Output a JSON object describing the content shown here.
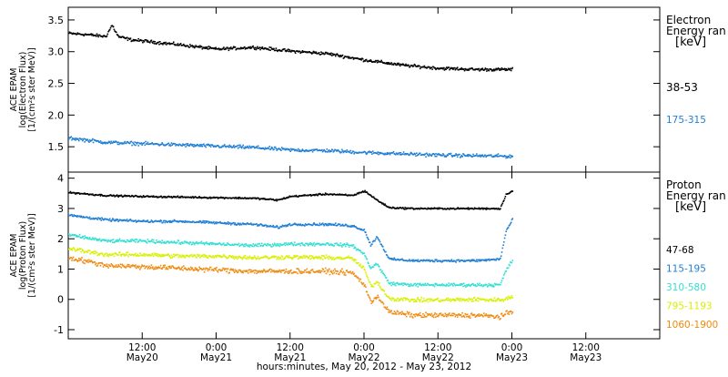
{
  "colors": {
    "black": "#000000",
    "blue": "#1f7fd4",
    "cyan": "#33e0d2",
    "yellow": "#d8f000",
    "orange": "#f08a10"
  },
  "x_axis": {
    "label": "hours:minutes, May 20, 2012 - May 23, 2012",
    "range_hours": [
      0,
      96
    ],
    "ticks": [
      {
        "hour": 12,
        "time": "12:00",
        "day": "May20"
      },
      {
        "hour": 24,
        "time": "0:00",
        "day": "May21"
      },
      {
        "hour": 36,
        "time": "12:00",
        "day": "May21"
      },
      {
        "hour": 48,
        "time": "0:00",
        "day": "May22"
      },
      {
        "hour": 60,
        "time": "12:00",
        "day": "May22"
      },
      {
        "hour": 72,
        "time": "0:00",
        "day": "May23"
      },
      {
        "hour": 84,
        "time": "12:00",
        "day": "May23"
      }
    ]
  },
  "chart_data": [
    {
      "type": "scatter",
      "ylabel_lines": [
        "ACE EPAM",
        "log(Electron Flux)",
        "[1/(cm²s ster MeV)]"
      ],
      "ylim": [
        1.1,
        3.7
      ],
      "yticks": [
        {
          "v": 1.5,
          "label": "1.5"
        },
        {
          "v": 2.0,
          "label": "2.0"
        },
        {
          "v": 2.5,
          "label": "2.5"
        },
        {
          "v": 3.0,
          "label": "3.0"
        },
        {
          "v": 3.5,
          "label": "3.5"
        }
      ],
      "legend_title_lines": [
        "Electron",
        "Energy ran",
        "[keV]"
      ],
      "x_end_hour": 72,
      "series": [
        {
          "name": "38-53",
          "color": "#000000",
          "spread": 0.035,
          "x": [
            0,
            3,
            6,
            7,
            8,
            10,
            12,
            18,
            24,
            30,
            36,
            42,
            48,
            54,
            60,
            66,
            72
          ],
          "y": [
            3.3,
            3.28,
            3.25,
            3.43,
            3.25,
            3.2,
            3.18,
            3.12,
            3.05,
            3.08,
            3.02,
            2.98,
            2.88,
            2.8,
            2.75,
            2.73,
            2.73
          ]
        },
        {
          "name": "175-315",
          "color": "#1f7fd4",
          "spread": 0.04,
          "x": [
            0,
            6,
            12,
            18,
            24,
            30,
            36,
            42,
            48,
            54,
            60,
            66,
            72
          ],
          "y": [
            1.65,
            1.58,
            1.56,
            1.54,
            1.52,
            1.5,
            1.46,
            1.45,
            1.42,
            1.4,
            1.38,
            1.37,
            1.36
          ]
        }
      ]
    },
    {
      "type": "scatter",
      "ylabel_lines": [
        "ACE EPAM",
        "log(Proton Flux)",
        "[1/(cm²s ster MeV)]"
      ],
      "ylim": [
        -1.3,
        4.2
      ],
      "yticks": [
        {
          "v": -1,
          "label": "-1"
        },
        {
          "v": 0,
          "label": "0"
        },
        {
          "v": 1,
          "label": "1"
        },
        {
          "v": 2,
          "label": "2"
        },
        {
          "v": 3,
          "label": "3"
        },
        {
          "v": 4,
          "label": "4"
        }
      ],
      "legend_title_lines": [
        "Proton",
        "Energy ran",
        "[keV]"
      ],
      "x_end_hour": 72,
      "series": [
        {
          "name": "47-68",
          "color": "#000000",
          "spread": 0.04,
          "x": [
            0,
            6,
            12,
            18,
            24,
            30,
            34,
            36,
            42,
            46,
            48,
            50,
            52,
            56,
            60,
            66,
            70,
            71,
            72
          ],
          "y": [
            3.55,
            3.45,
            3.42,
            3.4,
            3.38,
            3.36,
            3.3,
            3.42,
            3.5,
            3.45,
            3.6,
            3.3,
            3.05,
            3.02,
            3.02,
            3.02,
            3.02,
            3.5,
            3.6
          ]
        },
        {
          "name": "115-195",
          "color": "#1f7fd4",
          "spread": 0.06,
          "x": [
            0,
            6,
            12,
            18,
            24,
            30,
            34,
            36,
            42,
            46,
            48,
            49,
            50,
            52,
            56,
            60,
            66,
            70,
            71,
            72
          ],
          "y": [
            2.8,
            2.65,
            2.6,
            2.6,
            2.55,
            2.5,
            2.4,
            2.5,
            2.5,
            2.45,
            2.3,
            1.8,
            2.1,
            1.35,
            1.3,
            1.3,
            1.3,
            1.35,
            2.3,
            2.65
          ]
        },
        {
          "name": "310-580",
          "color": "#33e0d2",
          "spread": 0.08,
          "x": [
            0,
            6,
            12,
            18,
            24,
            30,
            36,
            42,
            46,
            48,
            49,
            50,
            52,
            56,
            60,
            66,
            70,
            71,
            72
          ],
          "y": [
            2.15,
            1.95,
            1.95,
            1.9,
            1.85,
            1.8,
            1.85,
            1.85,
            1.8,
            1.5,
            1.05,
            1.2,
            0.55,
            0.5,
            0.5,
            0.5,
            0.5,
            1.0,
            1.3
          ]
        },
        {
          "name": "795-1193",
          "color": "#d8f000",
          "spread": 0.1,
          "x": [
            0,
            6,
            12,
            18,
            24,
            30,
            36,
            42,
            46,
            48,
            49,
            50,
            52,
            56,
            60,
            66,
            70,
            71,
            72
          ],
          "y": [
            1.7,
            1.5,
            1.5,
            1.45,
            1.45,
            1.4,
            1.42,
            1.4,
            1.38,
            1.0,
            0.45,
            0.6,
            0.05,
            0.0,
            0.0,
            0.02,
            0.0,
            0.05,
            0.1
          ]
        },
        {
          "name": "1060-1900",
          "color": "#f08a10",
          "spread": 0.12,
          "x": [
            0,
            6,
            12,
            18,
            24,
            30,
            36,
            42,
            46,
            48,
            49,
            50,
            52,
            56,
            60,
            66,
            70,
            71,
            72
          ],
          "y": [
            1.4,
            1.15,
            1.1,
            1.05,
            1.0,
            0.95,
            0.95,
            0.95,
            0.9,
            0.5,
            -0.1,
            0.15,
            -0.4,
            -0.5,
            -0.5,
            -0.5,
            -0.55,
            -0.45,
            -0.4
          ]
        }
      ]
    }
  ]
}
